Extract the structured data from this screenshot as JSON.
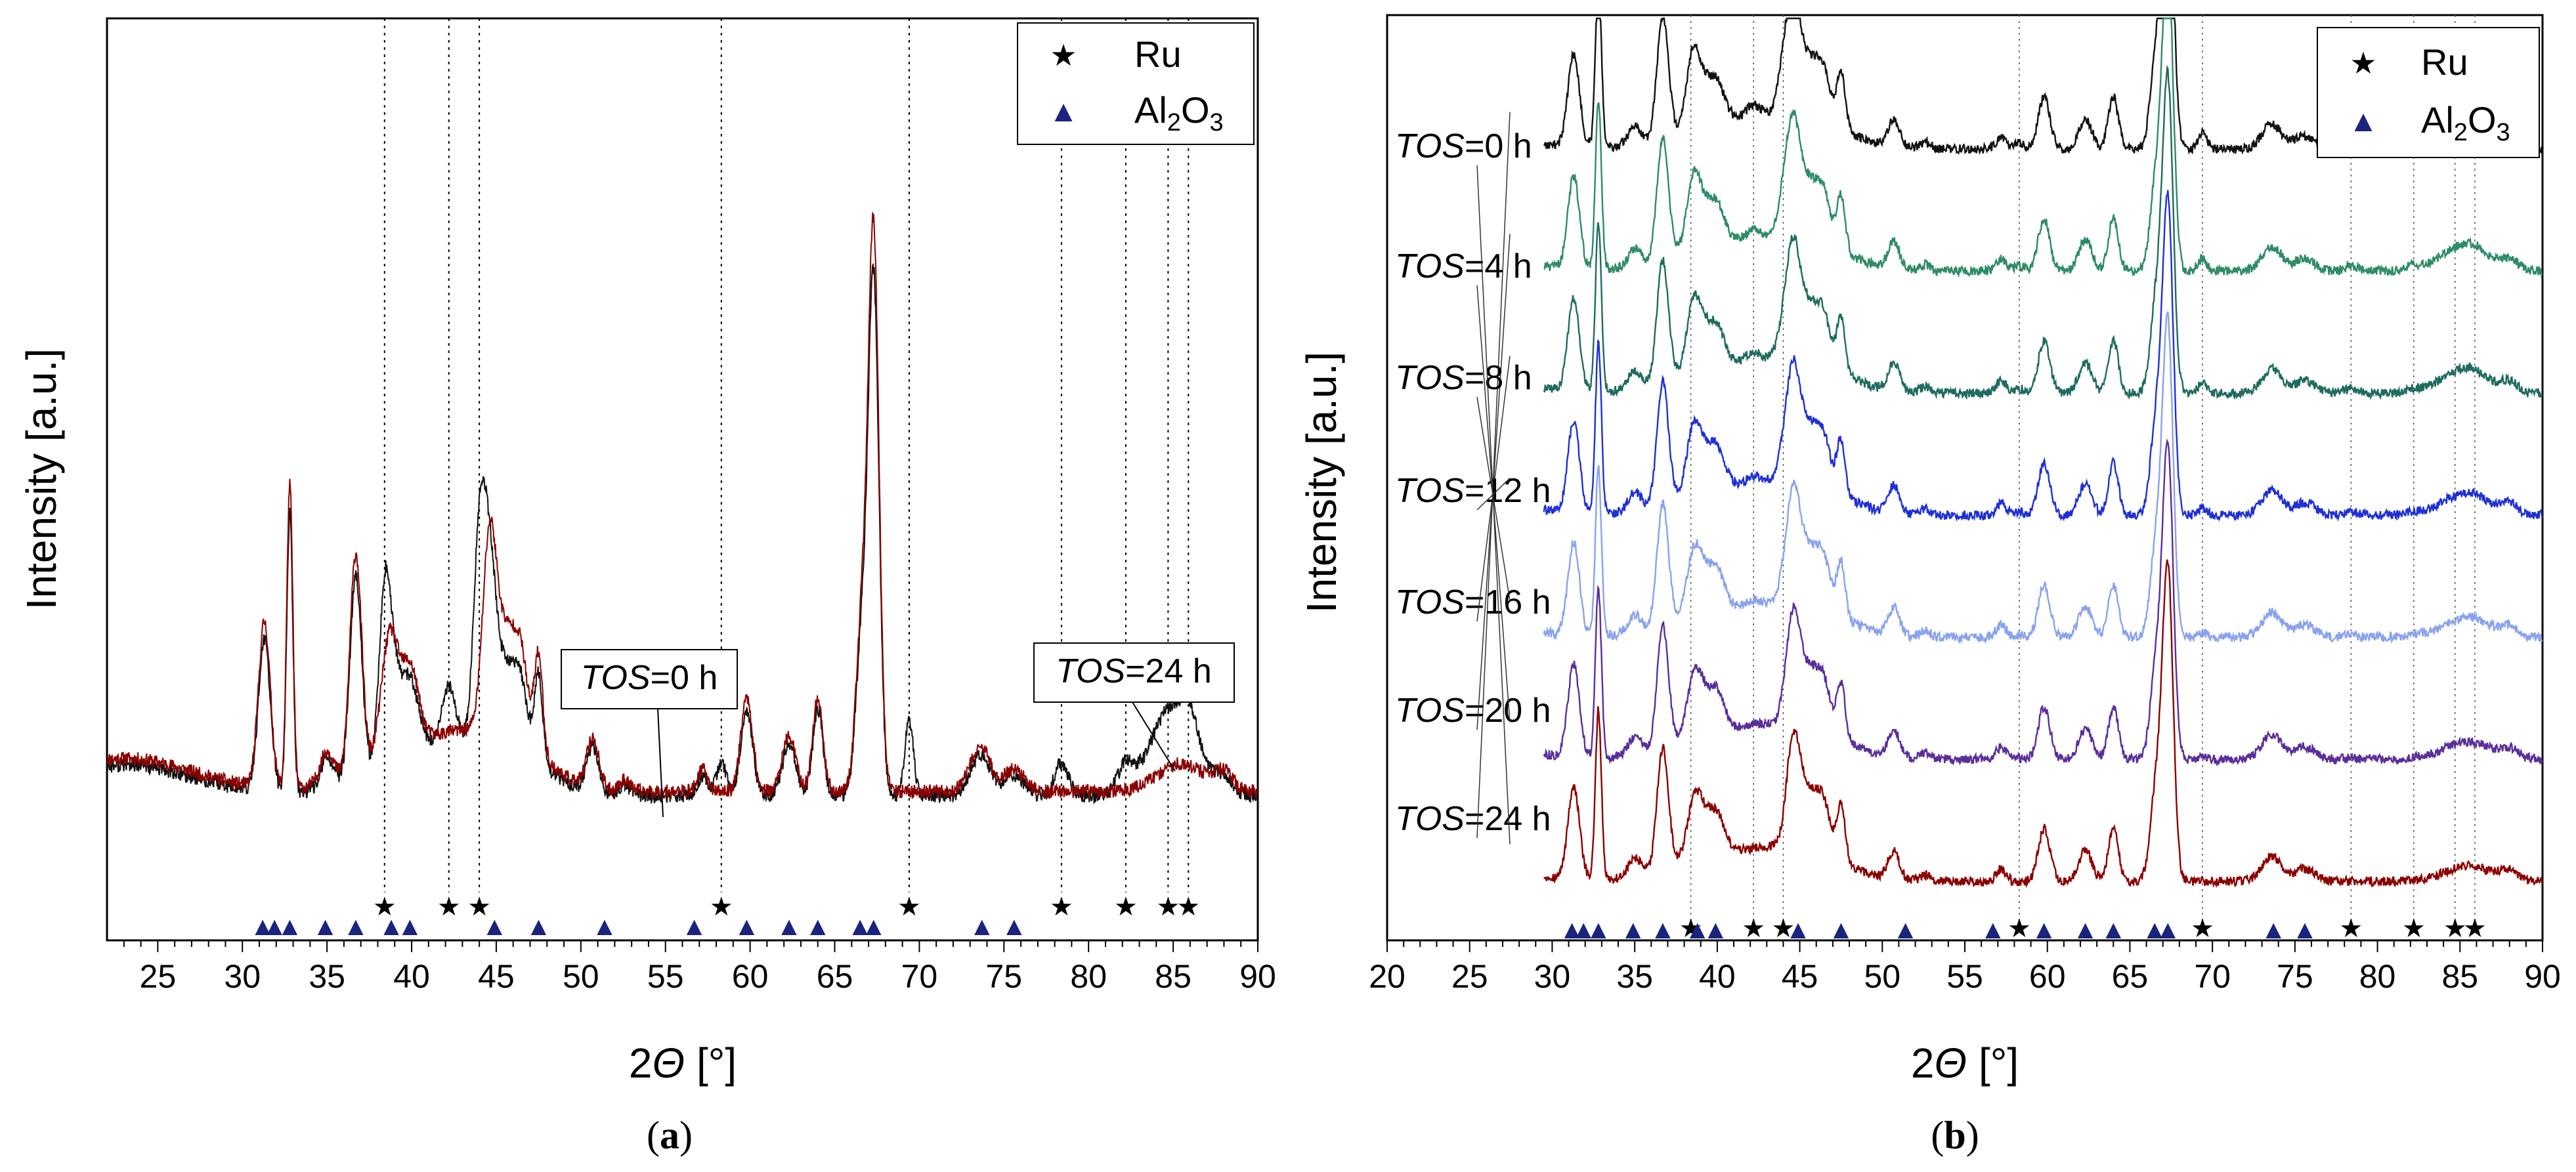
{
  "figure_captions": [
    "(a)",
    "(b)"
  ],
  "caption_parts": {
    "open": "(",
    "a": "a",
    "b": "b",
    "close": ")"
  },
  "colors": {
    "tos0": "#8b0000",
    "tos24": "#111111",
    "tos20": "#2e8b66",
    "tos16": "#1e6b5e",
    "tos12": "#1f2fd6",
    "tos8": "#8aa2ee",
    "tos4": "#5a2e9a",
    "marker_al2o3": "#1a237e",
    "marker_ru": "#000000"
  },
  "chart_data": [
    {
      "type": "line",
      "panel": "a",
      "xlabel_prefix": "2",
      "xlabel_symbol": "Θ",
      "xlabel_unit": " [°]",
      "ylabel": "Intensity [a.u.]",
      "xlim": [
        22,
        90
      ],
      "xticks": [
        25,
        30,
        35,
        40,
        45,
        50,
        55,
        60,
        65,
        70,
        75,
        80,
        85,
        90
      ],
      "legend": [
        {
          "symbol": "★",
          "label": "Ru"
        },
        {
          "symbol": "▲",
          "label_main": "Al",
          "label_sub1": "2",
          "label_mid": "O",
          "label_sub2": "3"
        }
      ],
      "series": [
        {
          "name": "TOS=0 h",
          "annotation_italic": "TOS",
          "annotation_rest": "=0 h",
          "color": "#8b0000"
        },
        {
          "name": "TOS=24 h",
          "annotation_italic": "TOS",
          "annotation_rest": "=24 h",
          "color": "#111111"
        }
      ],
      "ru_reference_peaks": [
        38.4,
        42.2,
        44.0,
        58.3,
        69.4,
        78.4,
        82.2,
        84.7,
        85.9
      ],
      "al2o3_reference_peaks": [
        31.2,
        31.9,
        32.8,
        34.9,
        36.7,
        38.8,
        39.9,
        44.9,
        47.5,
        51.4,
        56.7,
        59.8,
        62.3,
        64.0,
        66.5,
        67.3,
        73.7,
        75.6
      ]
    },
    {
      "type": "line",
      "panel": "b",
      "xlabel_prefix": "2",
      "xlabel_symbol": "Θ",
      "xlabel_unit": " [°]",
      "ylabel": "Intensity [a.u.]",
      "xlim": [
        20,
        90
      ],
      "xticks": [
        20,
        25,
        30,
        35,
        40,
        45,
        50,
        55,
        60,
        65,
        70,
        75,
        80,
        85,
        90
      ],
      "legend": [
        {
          "symbol": "★",
          "label": "Ru"
        },
        {
          "symbol": "▲",
          "label_main": "Al",
          "label_sub1": "2",
          "label_mid": "O",
          "label_sub2": "3"
        }
      ],
      "series": [
        {
          "name": "TOS=24 h",
          "annotation_italic": "TOS",
          "annotation_rest": "=24 h",
          "color": "#111111",
          "offset": 6
        },
        {
          "name": "TOS=20 h",
          "annotation_italic": "TOS",
          "annotation_rest": "=20 h",
          "color": "#2e8b66",
          "offset": 5
        },
        {
          "name": "TOS=16 h",
          "annotation_italic": "TOS",
          "annotation_rest": "=16 h",
          "color": "#1e6b5e",
          "offset": 4
        },
        {
          "name": "TOS=12 h",
          "annotation_italic": "TOS",
          "annotation_rest": "=12 h",
          "color": "#1f2fd6",
          "offset": 3
        },
        {
          "name": "TOS=8 h",
          "annotation_italic": "TOS",
          "annotation_rest": "=8 h",
          "color": "#8aa2ee",
          "offset": 2
        },
        {
          "name": "TOS=4 h",
          "annotation_italic": "TOS",
          "annotation_rest": "=4 h",
          "color": "#5a2e9a",
          "offset": 1
        },
        {
          "name": "TOS=0 h",
          "annotation_italic": "TOS",
          "annotation_rest": "=0 h",
          "color": "#8b0000",
          "offset": 0
        }
      ],
      "ru_reference_peaks": [
        38.4,
        42.2,
        44.0,
        58.3,
        69.4,
        78.4,
        82.2,
        84.7,
        85.9
      ],
      "al2o3_reference_peaks": [
        31.2,
        31.9,
        32.8,
        34.9,
        36.7,
        38.8,
        39.9,
        44.9,
        47.5,
        51.4,
        56.7,
        59.8,
        62.3,
        64.0,
        66.5,
        67.3,
        73.7,
        75.6
      ]
    }
  ]
}
